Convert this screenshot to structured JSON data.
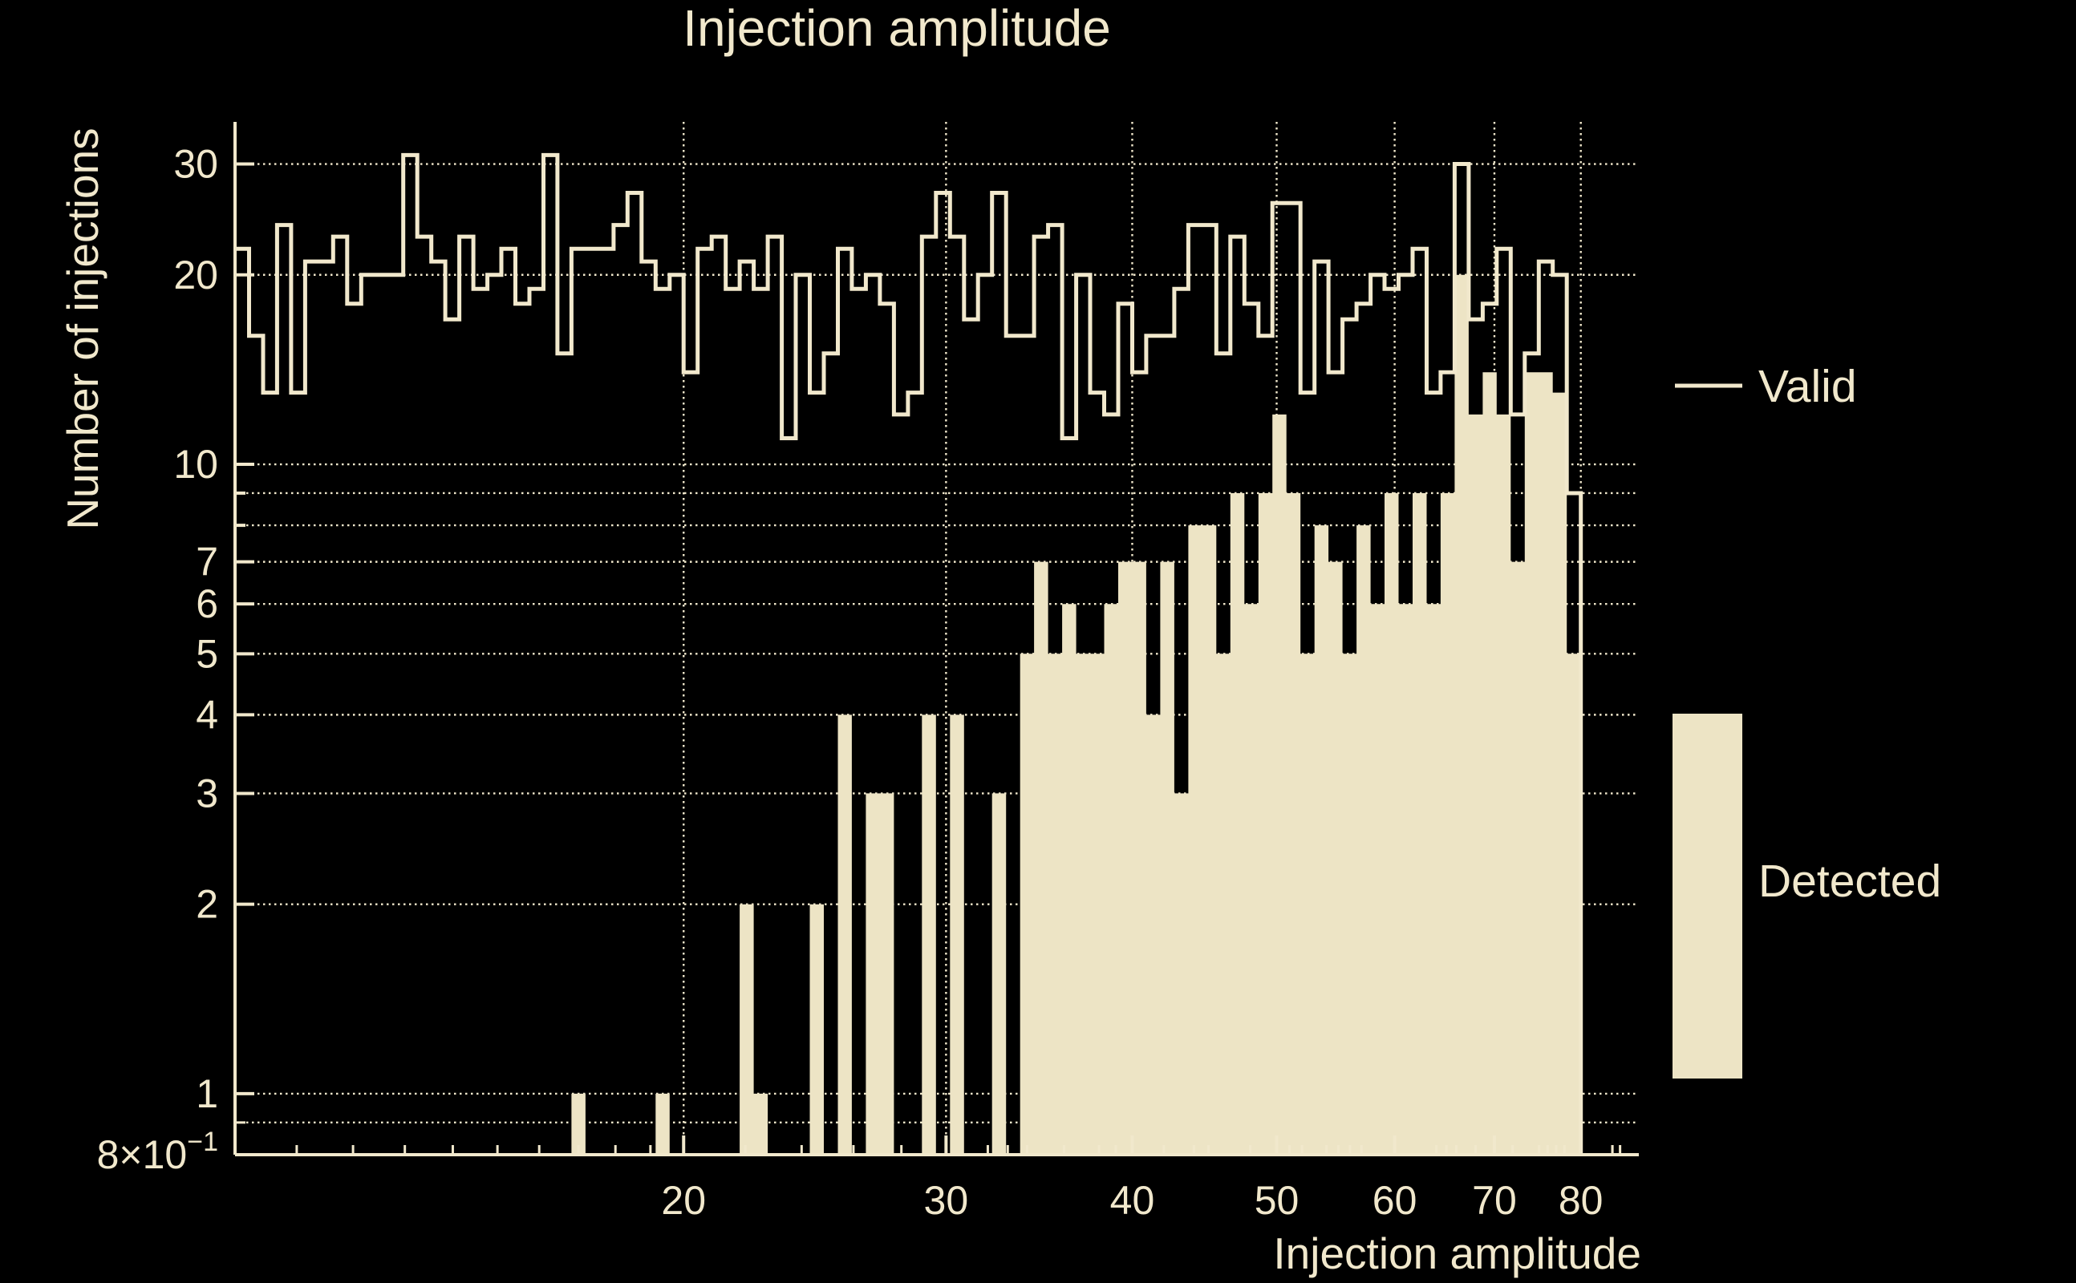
{
  "colors": {
    "background": "#000000",
    "foreground": "#F1E8CC",
    "fill": "#EDE4C5"
  },
  "chart_data": {
    "type": "bar",
    "subtype": "step-histogram-log-log",
    "title": "Injection amplitude",
    "xlabel": "Injection amplitude",
    "ylabel": "Number of injections",
    "x_range": [
      10,
      87.5
    ],
    "y_range": [
      0.8,
      35
    ],
    "x_scale": "log",
    "y_scale": "log",
    "grid": "dotted",
    "bins": {
      "count": 96,
      "min": 10,
      "max": 80,
      "spacing": "log"
    },
    "x_major_ticks": [
      20,
      30,
      40,
      50,
      60,
      70,
      80
    ],
    "x_tick_labels": [
      "20",
      "30",
      "40",
      "50",
      "60",
      "70",
      "80"
    ],
    "y_major_ticks": [
      1,
      2,
      3,
      4,
      5,
      6,
      7,
      8,
      9,
      10,
      20,
      30
    ],
    "y_minor_ticks": [
      0.9
    ],
    "y_tick_labels": [
      {
        "value": 30,
        "text": "30"
      },
      {
        "value": 20,
        "text": "20"
      },
      {
        "value": 10,
        "text": "10"
      },
      {
        "value": 7,
        "text": "7"
      },
      {
        "value": 6,
        "text": "6"
      },
      {
        "value": 5,
        "text": "5"
      },
      {
        "value": 4,
        "text": "4"
      },
      {
        "value": 3,
        "text": "3"
      },
      {
        "value": 2,
        "text": "2"
      },
      {
        "value": 1,
        "text": "1"
      },
      {
        "value": 0.8,
        "text": "8×10",
        "exponent": "−1"
      }
    ],
    "gridline_values_y": [
      0.9,
      1,
      2,
      3,
      4,
      5,
      6,
      7,
      8,
      9,
      10,
      20,
      30
    ],
    "gridline_values_x": [
      20,
      30,
      40,
      50,
      60,
      70,
      80
    ],
    "legend": {
      "position": "right",
      "entries": [
        "Valid",
        "Detected"
      ]
    },
    "series": [
      {
        "name": "Valid",
        "style": "step-outline",
        "values": [
          22,
          16,
          13,
          24,
          13,
          21,
          21,
          23,
          18,
          20,
          20,
          20,
          31,
          23,
          21,
          17,
          23,
          19,
          20,
          22,
          18,
          19,
          31,
          15,
          22,
          22,
          22,
          24,
          27,
          21,
          19,
          20,
          14,
          22,
          23,
          19,
          21,
          19,
          23,
          11,
          20,
          13,
          15,
          22,
          19,
          20,
          18,
          12,
          13,
          23,
          27,
          23,
          17,
          20,
          27,
          16,
          16,
          23,
          24,
          11,
          20,
          13,
          12,
          18,
          14,
          16,
          16,
          19,
          24,
          24,
          15,
          23,
          18,
          16,
          26,
          26,
          13,
          21,
          14,
          17,
          18,
          20,
          19,
          20,
          22,
          13,
          14,
          30,
          17,
          18,
          22,
          12,
          15,
          21,
          20,
          9
        ]
      },
      {
        "name": "Detected",
        "style": "filled",
        "values": [
          0,
          0,
          0,
          0,
          0,
          0,
          0,
          0,
          0,
          0,
          0,
          0,
          0,
          0,
          0,
          0,
          0,
          0,
          0,
          0,
          0,
          0,
          0,
          0,
          1,
          0,
          0,
          0,
          0,
          0,
          1,
          0,
          0,
          0,
          0,
          0,
          2,
          1,
          0,
          0,
          0,
          2,
          0,
          4,
          0,
          3,
          3,
          0,
          0,
          4,
          0,
          4,
          0,
          0,
          3,
          0,
          5,
          7,
          5,
          6,
          5,
          5,
          6,
          7,
          7,
          4,
          7,
          3,
          8,
          8,
          5,
          9,
          6,
          9,
          12,
          9,
          5,
          8,
          7,
          5,
          8,
          6,
          9,
          6,
          9,
          6,
          9,
          20,
          12,
          14,
          12,
          7,
          14,
          14,
          13,
          5
        ]
      }
    ]
  }
}
